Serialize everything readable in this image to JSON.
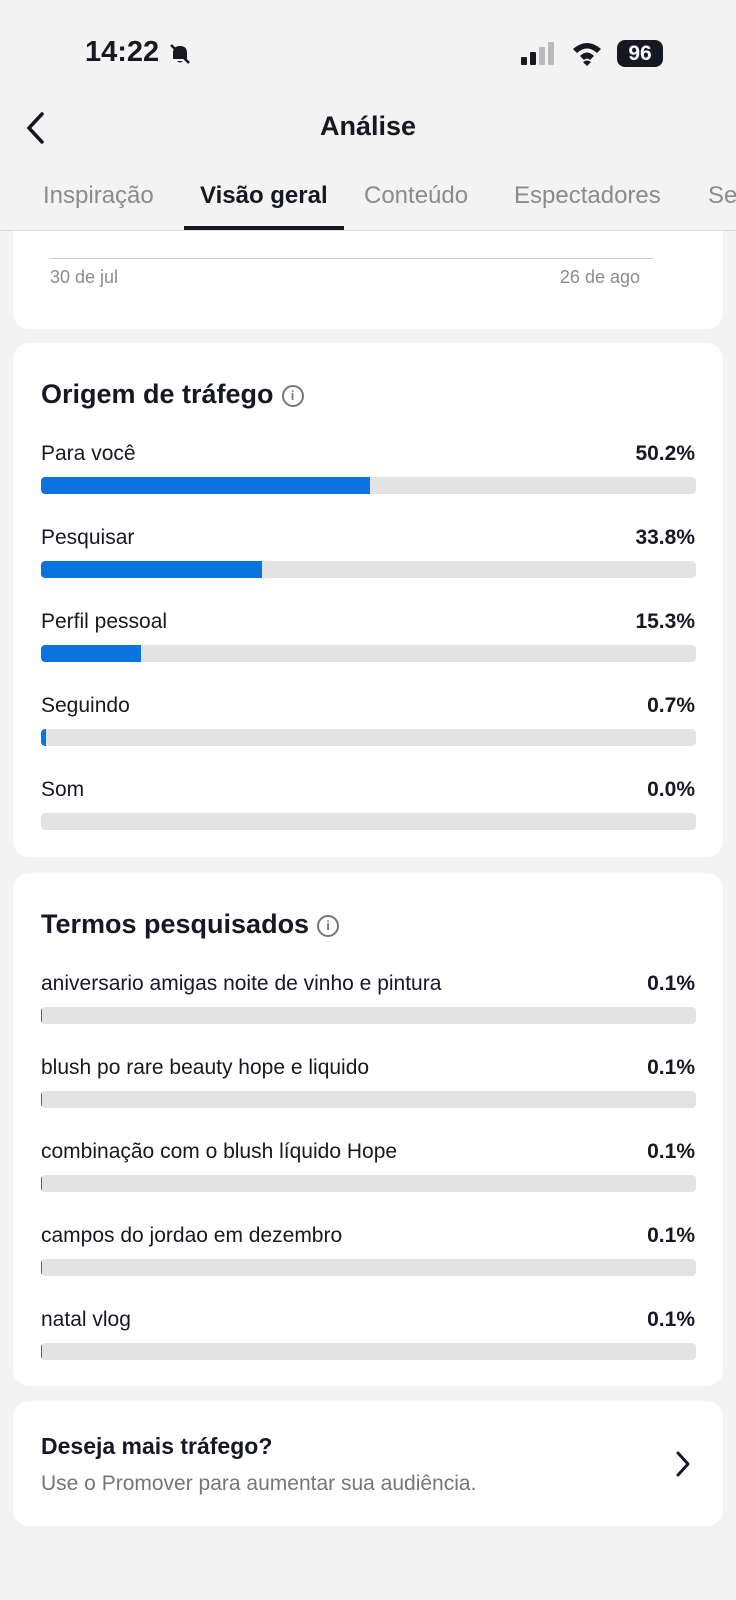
{
  "status_bar": {
    "time": "14:22",
    "battery": "96"
  },
  "header": {
    "title": "Análise"
  },
  "tabs": {
    "items": [
      "Inspiração",
      "Visão geral",
      "Conteúdo",
      "Espectadores",
      "Se"
    ],
    "active": 1
  },
  "trend_chart": {
    "x_labels": [
      "30 de jul",
      "26 de ago"
    ]
  },
  "traffic_source": {
    "type": "bar",
    "title": "Origem de tráfego",
    "categories": [
      "Para você",
      "Pesquisar",
      "Perfil pessoal",
      "Seguindo",
      "Som"
    ],
    "values": [
      50.2,
      33.8,
      15.3,
      0.7,
      0.0
    ],
    "value_labels": [
      "50.2%",
      "33.8%",
      "15.3%",
      "0.7%",
      "0.0%"
    ],
    "xlim": [
      0,
      100
    ],
    "color": "#0a74de"
  },
  "search_terms": {
    "type": "bar",
    "title": "Termos pesquisados",
    "categories": [
      "aniversario amigas noite de vinho e pintura",
      "blush po rare beauty hope e liquido",
      "combinação com o blush líquido Hope",
      "campos do jordao em dezembro",
      "natal vlog"
    ],
    "values": [
      0.1,
      0.1,
      0.1,
      0.1,
      0.1
    ],
    "value_labels": [
      "0.1%",
      "0.1%",
      "0.1%",
      "0.1%",
      "0.1%"
    ],
    "xlim": [
      0,
      100
    ],
    "color": "#0a74de"
  },
  "promo": {
    "title": "Deseja mais tráfego?",
    "text": "Use o Promover para aumentar sua audiência."
  }
}
